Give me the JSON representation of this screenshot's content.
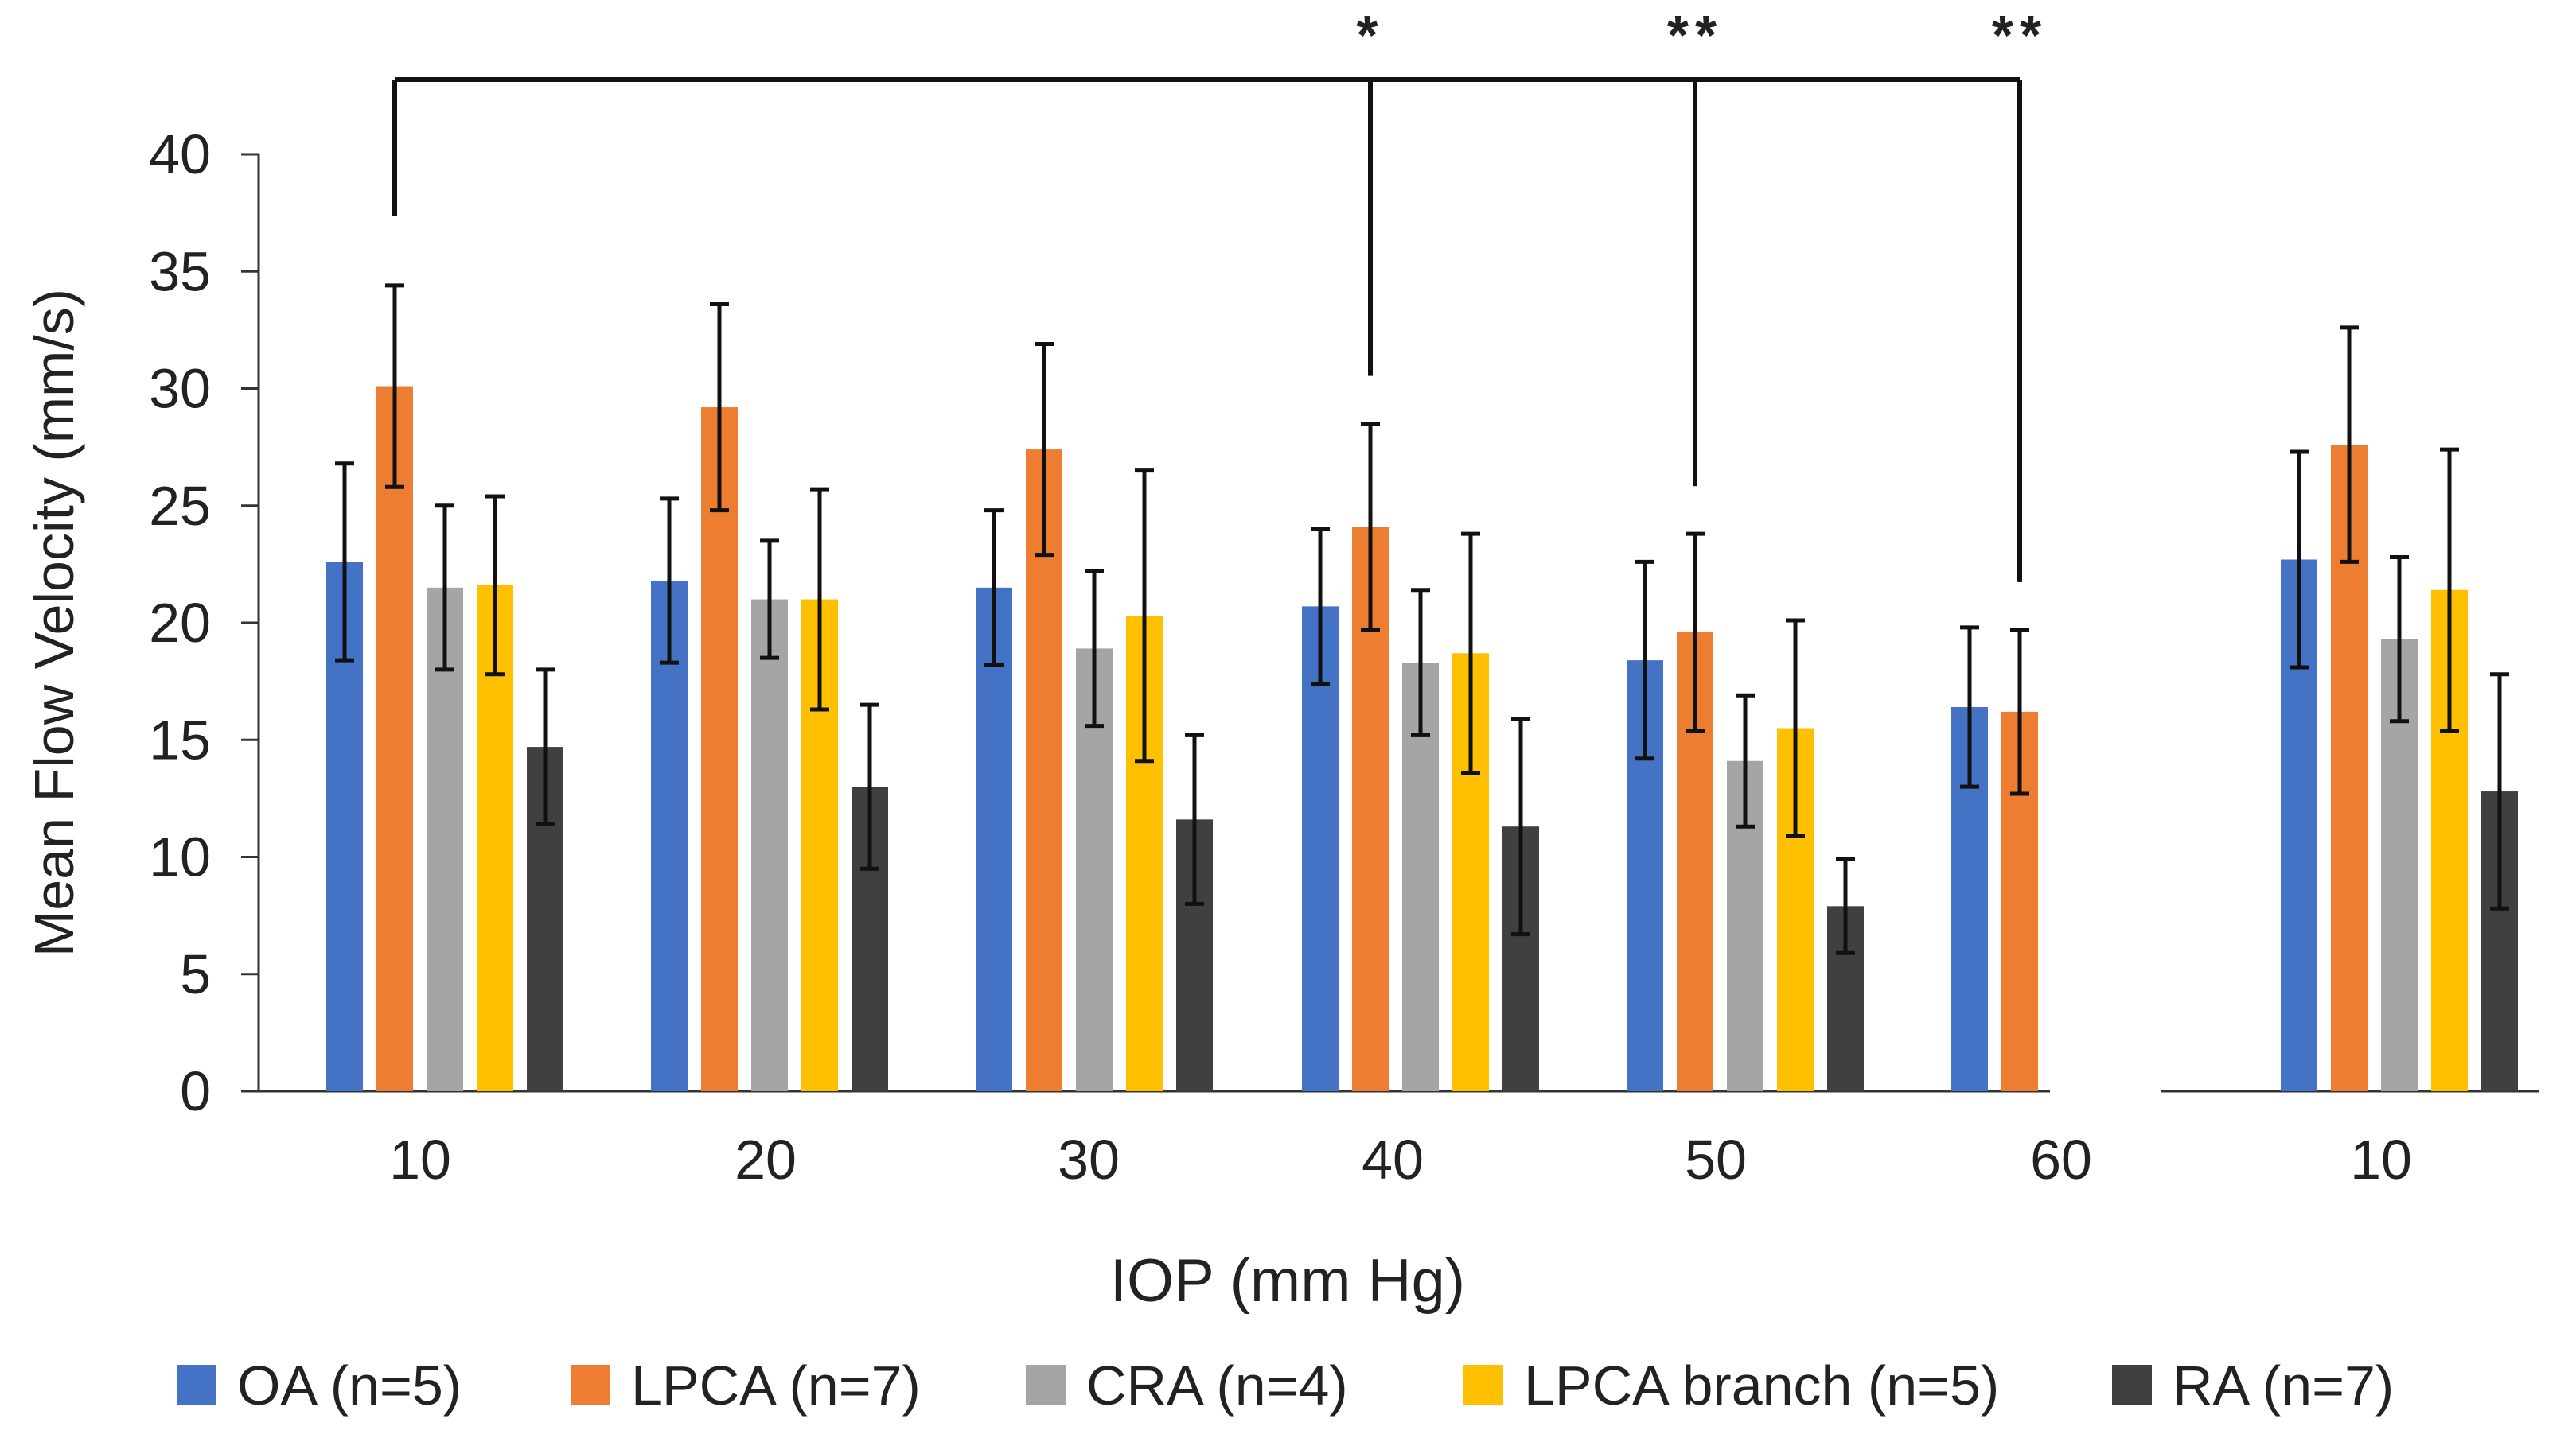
{
  "chart_data": {
    "type": "bar",
    "xlabel": "IOP (mm Hg)",
    "ylabel": "Mean Flow Velocity (mm/s)",
    "ylim": [
      0,
      40
    ],
    "yticks": [
      0,
      5,
      10,
      15,
      20,
      25,
      30,
      35,
      40
    ],
    "grid": false,
    "legend_position": "bottom",
    "categories": [
      "10",
      "20",
      "30",
      "40",
      "50",
      "60",
      "10"
    ],
    "series": [
      {
        "name": "OA (n=5)",
        "color": "#4472C4",
        "values": [
          22.6,
          21.8,
          21.5,
          20.7,
          18.4,
          16.4,
          22.7
        ],
        "errors": [
          4.2,
          3.5,
          3.3,
          3.3,
          4.2,
          3.4,
          4.6
        ]
      },
      {
        "name": "LPCA (n=7)",
        "color": "#ED7D31",
        "values": [
          30.1,
          29.2,
          27.4,
          24.1,
          19.6,
          16.2,
          27.6
        ],
        "errors": [
          4.3,
          4.4,
          4.5,
          4.4,
          4.2,
          3.5,
          5.0
        ]
      },
      {
        "name": "CRA (n=4)",
        "color": "#A5A5A5",
        "values": [
          21.5,
          21.0,
          18.9,
          18.3,
          14.1,
          null,
          19.3
        ],
        "errors": [
          3.5,
          2.5,
          3.3,
          3.1,
          2.8,
          null,
          3.5
        ]
      },
      {
        "name": "LPCA branch (n=5)",
        "color": "#FFC000",
        "values": [
          21.6,
          21.0,
          20.3,
          18.7,
          15.5,
          null,
          21.4
        ],
        "errors": [
          3.8,
          4.7,
          6.2,
          5.1,
          4.6,
          null,
          6.0
        ]
      },
      {
        "name": "RA (n=7)",
        "color": "#404040",
        "values": [
          14.7,
          13.0,
          11.6,
          11.3,
          7.9,
          null,
          12.8
        ],
        "errors": [
          3.3,
          3.5,
          3.6,
          4.6,
          2.0,
          null,
          5.0
        ]
      }
    ],
    "significance": {
      "reference_category": 0,
      "comparisons": [
        {
          "category": 3,
          "label": "*"
        },
        {
          "category": 4,
          "label": "**"
        },
        {
          "category": 5,
          "label": "**"
        }
      ]
    }
  }
}
